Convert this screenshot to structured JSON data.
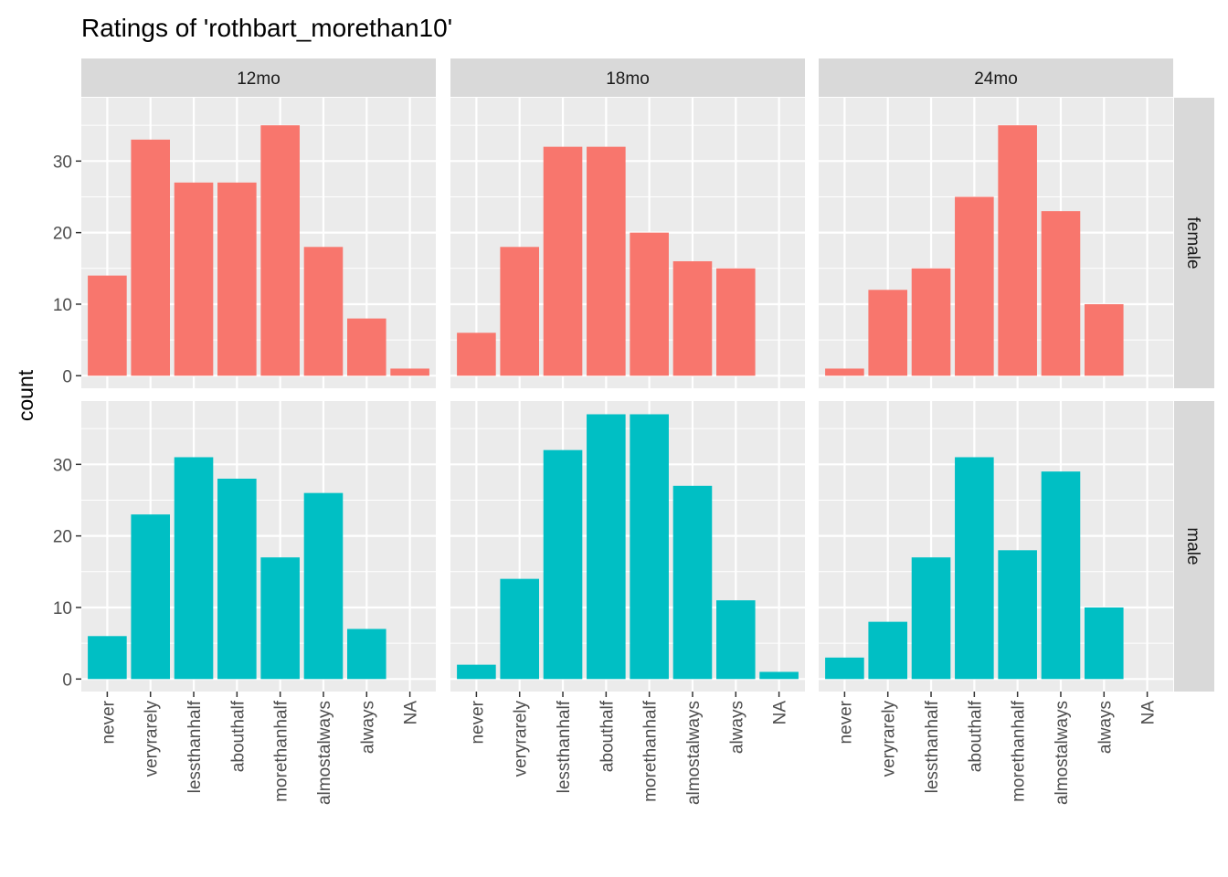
{
  "chart_data": {
    "type": "bar",
    "title": "Ratings of 'rothbart_morethan10'",
    "xlabel": "",
    "ylabel": "count",
    "ylim": [
      -1.75,
      38.85
    ],
    "y_ticks": [
      0,
      10,
      20,
      30
    ],
    "categories": [
      "never",
      "veryrarely",
      "lessthanhalf",
      "abouthalf",
      "morethanhalf",
      "almostalways",
      "always",
      "NA"
    ],
    "columns": [
      "12mo",
      "18mo",
      "24mo"
    ],
    "rows": [
      "female",
      "male"
    ],
    "colors": {
      "female": "#f8766d",
      "male": "#00bfc4",
      "panel_bg": "#ebebeb",
      "strip_bg": "#d9d9d9",
      "grid": "#ffffff"
    },
    "grid": true,
    "legend": "none",
    "panels": [
      {
        "column": "12mo",
        "row": "female",
        "values": [
          14,
          33,
          27,
          27,
          35,
          18,
          8,
          1
        ]
      },
      {
        "column": "18mo",
        "row": "female",
        "values": [
          6,
          18,
          32,
          32,
          20,
          16,
          15,
          0
        ]
      },
      {
        "column": "24mo",
        "row": "female",
        "values": [
          1,
          12,
          15,
          25,
          35,
          23,
          10,
          0
        ]
      },
      {
        "column": "12mo",
        "row": "male",
        "values": [
          6,
          23,
          31,
          28,
          17,
          26,
          7,
          0
        ]
      },
      {
        "column": "18mo",
        "row": "male",
        "values": [
          2,
          14,
          32,
          37,
          37,
          27,
          11,
          1
        ]
      },
      {
        "column": "24mo",
        "row": "male",
        "values": [
          3,
          8,
          17,
          31,
          18,
          29,
          10,
          0
        ]
      }
    ]
  }
}
